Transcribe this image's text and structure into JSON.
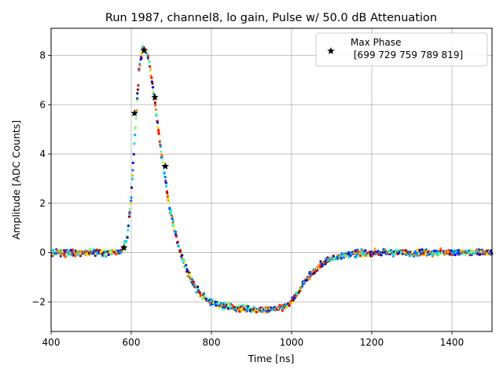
{
  "chart_data": {
    "type": "scatter",
    "title": "Run 1987, channel8, lo gain, Pulse w/ 50.0 dB Attenuation",
    "xlabel": "Time [ns]",
    "ylabel": "Amplitude [ADC Counts]",
    "xlim": [
      400,
      1500
    ],
    "ylim": [
      -3.2,
      9.1
    ],
    "xticks": [
      400,
      600,
      800,
      1000,
      1200,
      1400
    ],
    "yticks": [
      -2,
      0,
      2,
      4,
      6,
      8
    ],
    "grid": true,
    "legend": {
      "placement": "top-right",
      "entries": [
        {
          "name": "Max Phase",
          "detail": "[699 729 759 789 819]"
        }
      ]
    },
    "colormap": "jet",
    "pulse_shape": {
      "time": [
        400,
        575,
        590,
        600,
        610,
        620,
        630,
        640,
        650,
        660,
        670,
        680,
        690,
        700,
        720,
        740,
        760,
        780,
        800,
        830,
        860,
        900,
        950,
        980,
        1000,
        1020,
        1040,
        1060,
        1080,
        1100,
        1120,
        1150,
        1200,
        1500
      ],
      "amplitude": [
        0.0,
        0.0,
        0.6,
        2.3,
        5.0,
        7.5,
        8.4,
        8.1,
        7.2,
        6.0,
        4.7,
        3.5,
        2.4,
        1.5,
        0.1,
        -0.8,
        -1.4,
        -1.8,
        -2.0,
        -2.15,
        -2.25,
        -2.3,
        -2.3,
        -2.2,
        -2.0,
        -1.5,
        -1.0,
        -0.7,
        -0.4,
        -0.25,
        -0.15,
        -0.05,
        0.0,
        0.0
      ]
    },
    "max_phase_markers": {
      "name": "Max Phase",
      "x": [
        582,
        608,
        632,
        659,
        685
      ],
      "y": [
        0.2,
        5.65,
        8.2,
        6.3,
        3.5
      ]
    }
  }
}
